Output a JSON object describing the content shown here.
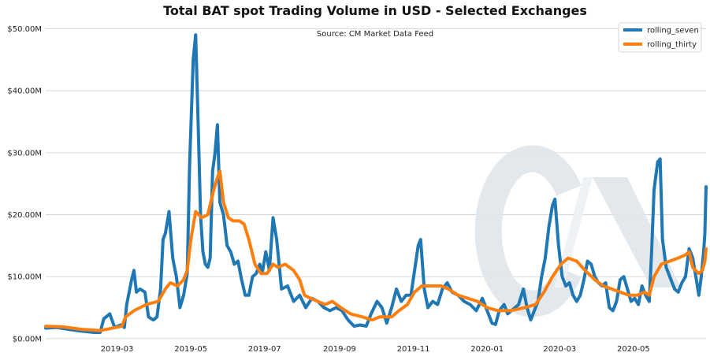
{
  "chart_data": {
    "type": "line",
    "title": "Total BAT spot Trading Volume in USD - Selected Exchanges",
    "annotation": "Source: CM Market Data Feed",
    "xlabel": "",
    "ylabel": "",
    "x_range": [
      "2019-01-01",
      "2020-06-30"
    ],
    "ylim": [
      -0.4,
      51.2
    ],
    "y_unit": "USD millions",
    "y_ticks": [
      0,
      10,
      20,
      30,
      40,
      50
    ],
    "y_tick_labels": [
      "$0.00M",
      "$10.00M",
      "$20.00M",
      "$30.00M",
      "$40.00M",
      "$50.00M"
    ],
    "x_ticks": [
      "2019-03-01",
      "2019-05-01",
      "2019-07-01",
      "2019-09-01",
      "2019-11-01",
      "2020-01-01",
      "2020-03-01",
      "2020-05-01"
    ],
    "x_tick_labels": [
      "2019-03",
      "2019-05",
      "2019-07",
      "2019-09",
      "2019-11",
      "2020-01",
      "2020-03",
      "2020-05"
    ],
    "grid": "y",
    "legend_position": "top-right",
    "watermark": "CM logo",
    "series": [
      {
        "name": "rolling_seven",
        "color": "#1f77b4",
        "points": [
          [
            "2019-01-01",
            1.7
          ],
          [
            "2019-01-10",
            1.8
          ],
          [
            "2019-01-20",
            1.5
          ],
          [
            "2019-01-31",
            1.2
          ],
          [
            "2019-02-10",
            1.0
          ],
          [
            "2019-02-15",
            1.0
          ],
          [
            "2019-02-18",
            3.2
          ],
          [
            "2019-02-23",
            4.0
          ],
          [
            "2019-02-27",
            1.8
          ],
          [
            "2019-03-04",
            2.2
          ],
          [
            "2019-03-07",
            1.8
          ],
          [
            "2019-03-09",
            5.5
          ],
          [
            "2019-03-13",
            9.5
          ],
          [
            "2019-03-15",
            11.0
          ],
          [
            "2019-03-17",
            7.5
          ],
          [
            "2019-03-20",
            8.0
          ],
          [
            "2019-03-24",
            7.5
          ],
          [
            "2019-03-27",
            3.5
          ],
          [
            "2019-03-31",
            3.0
          ],
          [
            "2019-04-03",
            3.5
          ],
          [
            "2019-04-06",
            8.0
          ],
          [
            "2019-04-08",
            16.0
          ],
          [
            "2019-04-10",
            17.0
          ],
          [
            "2019-04-13",
            20.5
          ],
          [
            "2019-04-16",
            13.0
          ],
          [
            "2019-04-19",
            10.0
          ],
          [
            "2019-04-22",
            5.0
          ],
          [
            "2019-04-25",
            7.0
          ],
          [
            "2019-04-28",
            10.5
          ],
          [
            "2019-04-30",
            28.0
          ],
          [
            "2019-05-03",
            45.0
          ],
          [
            "2019-05-05",
            49.0
          ],
          [
            "2019-05-07",
            35.0
          ],
          [
            "2019-05-09",
            20.0
          ],
          [
            "2019-05-11",
            14.0
          ],
          [
            "2019-05-13",
            12.0
          ],
          [
            "2019-05-15",
            11.5
          ],
          [
            "2019-05-17",
            13.0
          ],
          [
            "2019-05-19",
            27.0
          ],
          [
            "2019-05-21",
            30.0
          ],
          [
            "2019-05-23",
            34.5
          ],
          [
            "2019-05-25",
            22.0
          ],
          [
            "2019-05-28",
            20.0
          ],
          [
            "2019-05-31",
            15.0
          ],
          [
            "2019-06-03",
            14.0
          ],
          [
            "2019-06-06",
            12.0
          ],
          [
            "2019-06-09",
            12.5
          ],
          [
            "2019-06-12",
            9.5
          ],
          [
            "2019-06-15",
            7.0
          ],
          [
            "2019-06-18",
            7.0
          ],
          [
            "2019-06-21",
            10.0
          ],
          [
            "2019-06-24",
            10.5
          ],
          [
            "2019-06-27",
            12.0
          ],
          [
            "2019-06-29",
            10.5
          ],
          [
            "2019-07-02",
            14.0
          ],
          [
            "2019-07-05",
            11.0
          ],
          [
            "2019-07-08",
            19.5
          ],
          [
            "2019-07-11",
            16.0
          ],
          [
            "2019-07-15",
            8.0
          ],
          [
            "2019-07-20",
            8.5
          ],
          [
            "2019-07-25",
            6.0
          ],
          [
            "2019-07-30",
            7.0
          ],
          [
            "2019-08-04",
            5.0
          ],
          [
            "2019-08-09",
            6.5
          ],
          [
            "2019-08-14",
            6.0
          ],
          [
            "2019-08-19",
            5.0
          ],
          [
            "2019-08-24",
            4.5
          ],
          [
            "2019-08-29",
            5.0
          ],
          [
            "2019-09-03",
            4.5
          ],
          [
            "2019-09-08",
            3.0
          ],
          [
            "2019-09-13",
            2.0
          ],
          [
            "2019-09-18",
            2.2
          ],
          [
            "2019-09-23",
            2.0
          ],
          [
            "2019-09-27",
            4.0
          ],
          [
            "2019-10-02",
            6.0
          ],
          [
            "2019-10-06",
            5.0
          ],
          [
            "2019-10-10",
            2.5
          ],
          [
            "2019-10-14",
            5.0
          ],
          [
            "2019-10-18",
            8.0
          ],
          [
            "2019-10-22",
            6.0
          ],
          [
            "2019-10-26",
            7.0
          ],
          [
            "2019-10-30",
            7.0
          ],
          [
            "2019-11-02",
            11.0
          ],
          [
            "2019-11-05",
            15.0
          ],
          [
            "2019-11-07",
            16.0
          ],
          [
            "2019-11-10",
            8.0
          ],
          [
            "2019-11-13",
            5.0
          ],
          [
            "2019-11-17",
            6.0
          ],
          [
            "2019-11-21",
            5.5
          ],
          [
            "2019-11-25",
            8.0
          ],
          [
            "2019-11-29",
            9.0
          ],
          [
            "2019-12-03",
            7.5
          ],
          [
            "2019-12-08",
            7.0
          ],
          [
            "2019-12-13",
            6.0
          ],
          [
            "2019-12-18",
            5.5
          ],
          [
            "2019-12-23",
            4.5
          ],
          [
            "2019-12-28",
            6.5
          ],
          [
            "2020-01-01",
            4.5
          ],
          [
            "2020-01-05",
            2.5
          ],
          [
            "2020-01-08",
            2.3
          ],
          [
            "2020-01-11",
            4.5
          ],
          [
            "2020-01-15",
            5.5
          ],
          [
            "2020-01-18",
            4.0
          ],
          [
            "2020-01-21",
            4.5
          ],
          [
            "2020-01-24",
            5.0
          ],
          [
            "2020-01-27",
            5.5
          ],
          [
            "2020-01-31",
            8.0
          ],
          [
            "2020-02-03",
            5.0
          ],
          [
            "2020-02-06",
            3.0
          ],
          [
            "2020-02-09",
            4.5
          ],
          [
            "2020-02-12",
            6.0
          ],
          [
            "2020-02-15",
            10.0
          ],
          [
            "2020-02-18",
            13.0
          ],
          [
            "2020-02-21",
            18.0
          ],
          [
            "2020-02-24",
            21.5
          ],
          [
            "2020-02-26",
            22.5
          ],
          [
            "2020-02-29",
            15.0
          ],
          [
            "2020-03-03",
            10.0
          ],
          [
            "2020-03-06",
            8.5
          ],
          [
            "2020-03-09",
            9.0
          ],
          [
            "2020-03-12",
            7.0
          ],
          [
            "2020-03-15",
            6.0
          ],
          [
            "2020-03-18",
            7.0
          ],
          [
            "2020-03-21",
            9.5
          ],
          [
            "2020-03-24",
            12.5
          ],
          [
            "2020-03-27",
            12.0
          ],
          [
            "2020-03-30",
            10.0
          ],
          [
            "2020-04-02",
            9.0
          ],
          [
            "2020-04-05",
            8.5
          ],
          [
            "2020-04-08",
            9.0
          ],
          [
            "2020-04-11",
            5.0
          ],
          [
            "2020-04-14",
            4.5
          ],
          [
            "2020-04-17",
            6.0
          ],
          [
            "2020-04-20",
            9.5
          ],
          [
            "2020-04-23",
            10.0
          ],
          [
            "2020-04-26",
            8.0
          ],
          [
            "2020-04-29",
            6.0
          ],
          [
            "2020-05-02",
            6.5
          ],
          [
            "2020-05-05",
            5.5
          ],
          [
            "2020-05-08",
            8.5
          ],
          [
            "2020-05-11",
            7.0
          ],
          [
            "2020-05-14",
            6.0
          ],
          [
            "2020-05-16",
            14.0
          ],
          [
            "2020-05-18",
            24.0
          ],
          [
            "2020-05-21",
            28.5
          ],
          [
            "2020-05-23",
            29.0
          ],
          [
            "2020-05-25",
            16.0
          ],
          [
            "2020-05-28",
            11.5
          ],
          [
            "2020-06-01",
            9.5
          ],
          [
            "2020-06-04",
            8.0
          ],
          [
            "2020-06-07",
            7.5
          ],
          [
            "2020-06-10",
            9.0
          ],
          [
            "2020-06-13",
            10.0
          ],
          [
            "2020-06-16",
            14.5
          ],
          [
            "2020-06-19",
            13.0
          ],
          [
            "2020-06-22",
            9.5
          ],
          [
            "2020-06-24",
            7.0
          ],
          [
            "2020-06-26",
            10.0
          ],
          [
            "2020-06-28",
            14.0
          ],
          [
            "2020-06-29",
            17.0
          ],
          [
            "2020-06-30",
            24.5
          ]
        ]
      },
      {
        "name": "rolling_thirty",
        "color": "#ff7f0e",
        "points": [
          [
            "2019-01-01",
            2.0
          ],
          [
            "2019-01-15",
            1.9
          ],
          [
            "2019-01-31",
            1.5
          ],
          [
            "2019-02-15",
            1.3
          ],
          [
            "2019-02-28",
            1.8
          ],
          [
            "2019-03-05",
            2.0
          ],
          [
            "2019-03-08",
            3.5
          ],
          [
            "2019-03-15",
            4.5
          ],
          [
            "2019-03-25",
            5.5
          ],
          [
            "2019-04-04",
            6.0
          ],
          [
            "2019-04-10",
            8.0
          ],
          [
            "2019-04-14",
            9.0
          ],
          [
            "2019-04-20",
            8.5
          ],
          [
            "2019-04-25",
            9.5
          ],
          [
            "2019-04-28",
            11.0
          ],
          [
            "2019-05-01",
            16.0
          ],
          [
            "2019-05-05",
            20.5
          ],
          [
            "2019-05-10",
            19.5
          ],
          [
            "2019-05-15",
            20.0
          ],
          [
            "2019-05-20",
            24.0
          ],
          [
            "2019-05-23",
            26.0
          ],
          [
            "2019-05-25",
            27.0
          ],
          [
            "2019-05-28",
            22.0
          ],
          [
            "2019-06-01",
            19.5
          ],
          [
            "2019-06-05",
            19.0
          ],
          [
            "2019-06-10",
            19.0
          ],
          [
            "2019-06-14",
            18.5
          ],
          [
            "2019-06-18",
            16.0
          ],
          [
            "2019-06-23",
            12.0
          ],
          [
            "2019-06-28",
            10.5
          ],
          [
            "2019-07-03",
            10.5
          ],
          [
            "2019-07-08",
            12.0
          ],
          [
            "2019-07-12",
            11.5
          ],
          [
            "2019-07-18",
            12.0
          ],
          [
            "2019-07-25",
            11.0
          ],
          [
            "2019-07-30",
            9.5
          ],
          [
            "2019-08-03",
            7.0
          ],
          [
            "2019-08-08",
            6.5
          ],
          [
            "2019-08-14",
            6.0
          ],
          [
            "2019-08-20",
            5.5
          ],
          [
            "2019-08-26",
            6.0
          ],
          [
            "2019-09-02",
            5.0
          ],
          [
            "2019-09-10",
            4.0
          ],
          [
            "2019-09-20",
            3.5
          ],
          [
            "2019-09-28",
            3.0
          ],
          [
            "2019-10-04",
            3.5
          ],
          [
            "2019-10-14",
            3.5
          ],
          [
            "2019-10-20",
            4.5
          ],
          [
            "2019-10-27",
            5.5
          ],
          [
            "2019-11-02",
            7.5
          ],
          [
            "2019-11-08",
            8.5
          ],
          [
            "2019-11-15",
            8.5
          ],
          [
            "2019-11-24",
            8.5
          ],
          [
            "2019-11-30",
            8.0
          ],
          [
            "2019-12-08",
            7.0
          ],
          [
            "2019-12-16",
            6.5
          ],
          [
            "2019-12-24",
            6.0
          ],
          [
            "2020-01-01",
            5.0
          ],
          [
            "2020-01-10",
            4.5
          ],
          [
            "2020-01-20",
            4.5
          ],
          [
            "2020-02-01",
            5.0
          ],
          [
            "2020-02-10",
            5.5
          ],
          [
            "2020-02-17",
            7.5
          ],
          [
            "2020-02-24",
            10.0
          ],
          [
            "2020-03-02",
            12.0
          ],
          [
            "2020-03-08",
            13.0
          ],
          [
            "2020-03-15",
            12.5
          ],
          [
            "2020-03-22",
            11.0
          ],
          [
            "2020-03-30",
            9.5
          ],
          [
            "2020-04-06",
            8.5
          ],
          [
            "2020-04-13",
            8.0
          ],
          [
            "2020-04-20",
            7.5
          ],
          [
            "2020-04-27",
            7.0
          ],
          [
            "2020-05-04",
            7.0
          ],
          [
            "2020-05-10",
            7.5
          ],
          [
            "2020-05-14",
            7.0
          ],
          [
            "2020-05-18",
            10.0
          ],
          [
            "2020-05-24",
            12.0
          ],
          [
            "2020-05-31",
            12.5
          ],
          [
            "2020-06-07",
            13.0
          ],
          [
            "2020-06-13",
            13.5
          ],
          [
            "2020-06-16",
            14.0
          ],
          [
            "2020-06-19",
            11.5
          ],
          [
            "2020-06-24",
            10.5
          ],
          [
            "2020-06-27",
            11.0
          ],
          [
            "2020-06-29",
            12.5
          ],
          [
            "2020-06-30",
            14.5
          ]
        ]
      }
    ]
  }
}
